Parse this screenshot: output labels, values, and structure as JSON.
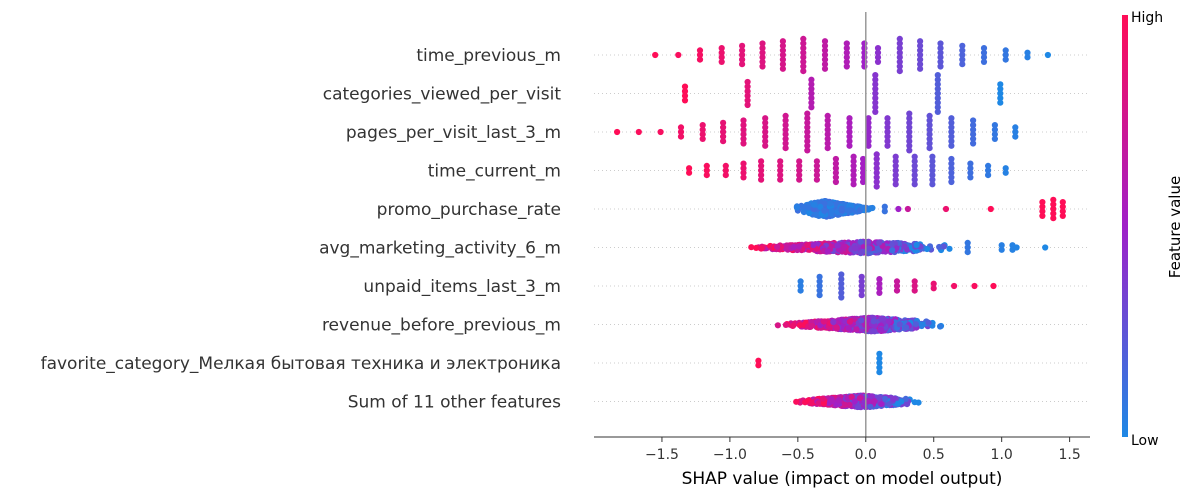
{
  "chart_data": {
    "type": "scatter",
    "xlabel": "SHAP value (impact on model output)",
    "xticks": [
      "−1.5",
      "−1.0",
      "−0.5",
      "0.0",
      "0.5",
      "1.0",
      "1.5"
    ],
    "xtick_values": [
      -1.5,
      -1.0,
      -0.5,
      0.0,
      0.5,
      1.0,
      1.5
    ],
    "xlim": [
      -2.0,
      1.65
    ],
    "colorbar": {
      "title": "Feature value",
      "high_label": "High",
      "low_label": "Low",
      "high_color": "#ff0d57",
      "mid_color": "#a020c8",
      "low_color": "#1e88e5"
    },
    "features": [
      {
        "name": "time_previous_m",
        "shape": "discrete",
        "x": [
          -1.55,
          -1.38,
          -1.22,
          -1.06,
          -0.91,
          -0.76,
          -0.61,
          -0.46,
          -0.3,
          -0.14,
          -0.01,
          0.09,
          0.25,
          0.4,
          0.55,
          0.71,
          0.87,
          1.03,
          1.19,
          1.34
        ],
        "v": [
          1.0,
          0.97,
          0.95,
          0.9,
          0.85,
          0.82,
          0.78,
          0.73,
          0.66,
          0.58,
          0.5,
          0.42,
          0.35,
          0.3,
          0.24,
          0.18,
          0.12,
          0.08,
          0.04,
          0.0
        ],
        "h": [
          1,
          1,
          3,
          4,
          5,
          6,
          7,
          8,
          7,
          6,
          6,
          4,
          8,
          7,
          6,
          5,
          4,
          3,
          2,
          1
        ]
      },
      {
        "name": "categories_viewed_per_visit",
        "shape": "discrete",
        "x": [
          -1.33,
          -0.87,
          -0.4,
          0.07,
          0.53,
          0.99
        ],
        "v": [
          1.0,
          0.85,
          0.6,
          0.4,
          0.2,
          0.0
        ],
        "h": [
          4,
          6,
          7,
          9,
          9,
          5
        ]
      },
      {
        "name": "pages_per_visit_last_3_m",
        "shape": "discrete",
        "x": [
          -1.83,
          -1.67,
          -1.51,
          -1.36,
          -1.2,
          -1.05,
          -0.9,
          -0.74,
          -0.59,
          -0.43,
          -0.28,
          -0.12,
          0.02,
          0.16,
          0.32,
          0.47,
          0.63,
          0.79,
          0.95,
          1.1
        ],
        "v": [
          1.0,
          0.98,
          0.96,
          0.93,
          0.9,
          0.87,
          0.83,
          0.79,
          0.75,
          0.7,
          0.63,
          0.55,
          0.46,
          0.38,
          0.32,
          0.26,
          0.2,
          0.14,
          0.08,
          0.04
        ],
        "h": [
          1,
          1,
          1,
          3,
          4,
          5,
          6,
          7,
          8,
          9,
          8,
          7,
          7,
          7,
          9,
          8,
          7,
          6,
          4,
          3
        ]
      },
      {
        "name": "time_current_m",
        "shape": "discrete",
        "x": [
          -1.3,
          -1.17,
          -1.03,
          -0.9,
          -0.77,
          -0.63,
          -0.49,
          -0.36,
          -0.22,
          -0.09,
          -0.02,
          0.08,
          0.22,
          0.36,
          0.49,
          0.63,
          0.77,
          0.9,
          1.03
        ],
        "v": [
          1.0,
          0.97,
          0.93,
          0.9,
          0.86,
          0.82,
          0.77,
          0.72,
          0.66,
          0.58,
          0.52,
          0.42,
          0.36,
          0.3,
          0.24,
          0.18,
          0.12,
          0.07,
          0.03
        ],
        "h": [
          2,
          3,
          3,
          4,
          5,
          5,
          5,
          5,
          6,
          7,
          6,
          8,
          7,
          7,
          7,
          6,
          4,
          3,
          2
        ]
      },
      {
        "name": "promo_purchase_rate",
        "shape": "mixed",
        "x": [
          0.14,
          0.24,
          0.31,
          0.59,
          0.92,
          1.3,
          1.38,
          1.45
        ],
        "v": [
          0.1,
          0.5,
          0.7,
          0.9,
          1.0,
          1.0,
          1.0,
          1.0
        ],
        "h": [
          2,
          1,
          1,
          1,
          1,
          4,
          5,
          4
        ],
        "cloud": {
          "range": [
            -0.55,
            0.1
          ],
          "n": 460,
          "vmin": 0.0,
          "vmax": 0.14,
          "spread": 8,
          "peak": -0.3
        }
      },
      {
        "name": "avg_marketing_activity_6_m",
        "shape": "mixed",
        "x": [
          0.75,
          1.0,
          1.08,
          1.11,
          1.32
        ],
        "v": [
          0.08,
          0.04,
          0.03,
          0.02,
          0.0
        ],
        "h": [
          3,
          2,
          2,
          1,
          1
        ],
        "cloud": {
          "range": [
            -1.0,
            0.72
          ],
          "n": 620,
          "vmin": 0.0,
          "vmax": 1.0,
          "spread": 6,
          "peak": 0.0,
          "gradient": true
        }
      },
      {
        "name": "unpaid_items_last_3_m",
        "shape": "discrete",
        "x": [
          -0.48,
          -0.34,
          -0.18,
          -0.03,
          0.1,
          0.23,
          0.36,
          0.5,
          0.65,
          0.8,
          0.94
        ],
        "v": [
          0.05,
          0.1,
          0.2,
          0.35,
          0.55,
          0.7,
          0.8,
          0.88,
          0.93,
          0.97,
          1.0
        ],
        "h": [
          3,
          5,
          6,
          5,
          4,
          3,
          3,
          2,
          1,
          1,
          1
        ]
      },
      {
        "name": "revenue_before_previous_m",
        "shape": "cloud",
        "cloud": {
          "range": [
            -0.7,
            0.62
          ],
          "n": 900,
          "vmin": 0.0,
          "vmax": 1.0,
          "spread": 7,
          "peak": 0.05,
          "gradient": true
        }
      },
      {
        "name": "favorite_category_Мелкая бытовая техника и электроника",
        "shape": "discrete",
        "x": [
          -0.79,
          0.1
        ],
        "v": [
          1.0,
          0.0
        ],
        "h": [
          2,
          5
        ]
      },
      {
        "name": "Sum of 11 other features",
        "shape": "cloud",
        "cloud": {
          "range": [
            -0.58,
            0.45
          ],
          "n": 800,
          "vmin": 0.0,
          "vmax": 1.0,
          "spread": 6,
          "peak": -0.02,
          "gradient": true
        }
      }
    ]
  }
}
